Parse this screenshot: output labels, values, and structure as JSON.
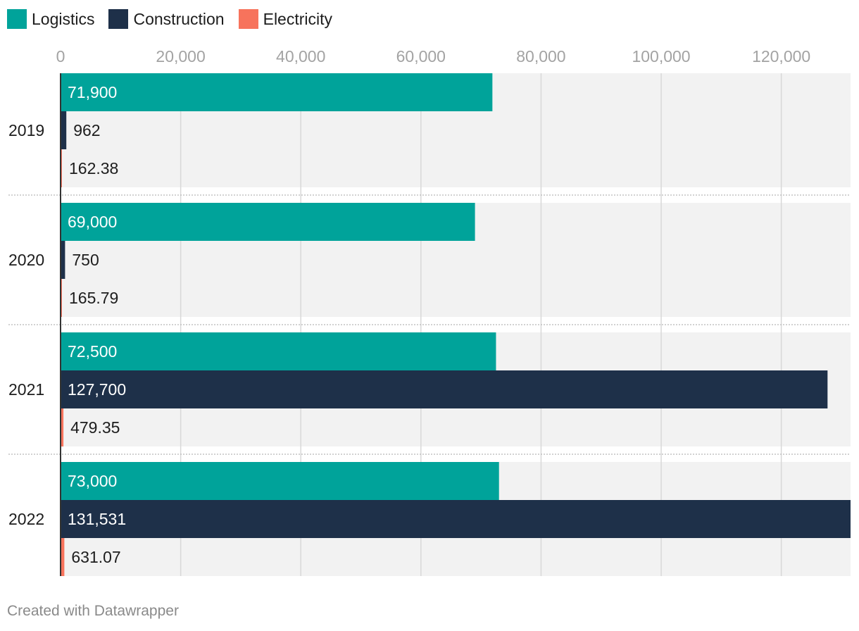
{
  "chart_data": {
    "type": "bar",
    "orientation": "horizontal",
    "categories": [
      "2019",
      "2020",
      "2021",
      "2022"
    ],
    "series": [
      {
        "name": "Logistics",
        "color": "#00a39a",
        "values": [
          71900,
          69000,
          72500,
          73000
        ],
        "labels": [
          "71,900",
          "69,000",
          "72,500",
          "73,000"
        ]
      },
      {
        "name": "Construction",
        "color": "#1e3049",
        "values": [
          962,
          750,
          127700,
          131531
        ],
        "labels": [
          "962",
          "750",
          "127,700",
          "131,531"
        ]
      },
      {
        "name": "Electricity",
        "color": "#f7735c",
        "values": [
          162.38,
          165.79,
          479.35,
          631.07
        ],
        "labels": [
          "162.38",
          "165.79",
          "479.35",
          "631.07"
        ]
      }
    ],
    "x_ticks": [
      0,
      20000,
      40000,
      60000,
      80000,
      100000,
      120000
    ],
    "x_tick_labels": [
      "0",
      "20,000",
      "40,000",
      "60,000",
      "80,000",
      "100,000",
      "120,000"
    ],
    "xlim": [
      0,
      131531
    ],
    "grid": true,
    "legend_position": "top-left"
  },
  "footer": {
    "credit": "Created with Datawrapper"
  }
}
